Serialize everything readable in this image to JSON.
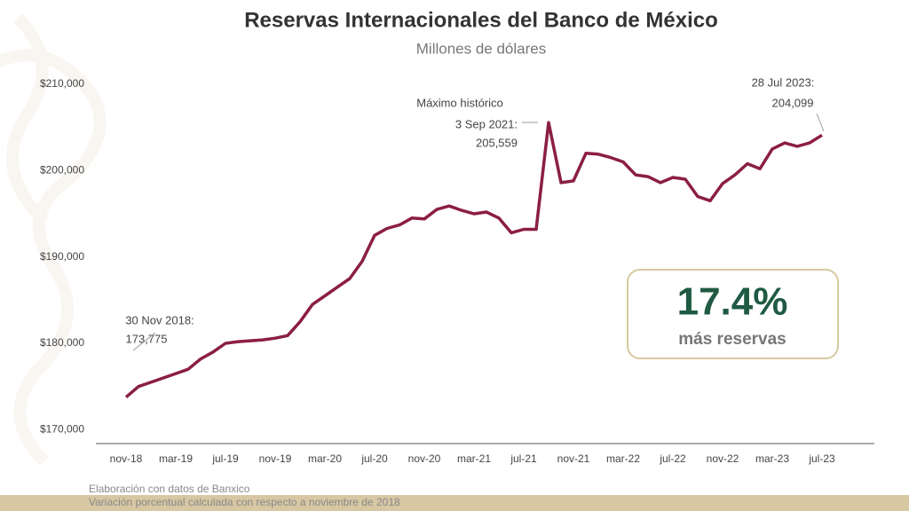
{
  "chart_data": {
    "type": "line",
    "title": "Reservas Internacionales del Banco de México",
    "subtitle": "Millones de dólares",
    "categories": [
      "nov-18",
      null,
      null,
      null,
      "mar-19",
      null,
      null,
      null,
      "jul-19",
      null,
      null,
      null,
      "nov-19",
      null,
      null,
      null,
      "mar-20",
      null,
      null,
      null,
      "jul-20",
      null,
      null,
      null,
      "nov-20",
      null,
      null,
      null,
      "mar-21",
      null,
      null,
      null,
      "jul-21",
      null,
      null,
      null,
      "nov-21",
      null,
      null,
      null,
      "mar-22",
      null,
      null,
      null,
      "jul-22",
      null,
      null,
      null,
      "nov-22",
      null,
      null,
      null,
      "mar-23",
      null,
      null,
      null,
      "jul-23"
    ],
    "values": [
      173775,
      175000,
      175500,
      176000,
      176500,
      177000,
      178200,
      179000,
      180000,
      180200,
      180300,
      180400,
      180600,
      180900,
      182500,
      184500,
      185500,
      186500,
      187500,
      189500,
      192500,
      193300,
      193700,
      194500,
      194400,
      195500,
      195900,
      195400,
      195000,
      195200,
      194500,
      192800,
      193200,
      193200,
      205559,
      198600,
      198800,
      202000,
      201900,
      201500,
      201000,
      199500,
      199300,
      198600,
      199200,
      199000,
      197000,
      196500,
      198500,
      199500,
      200800,
      200200,
      202500,
      203200,
      202800,
      203200,
      204099
    ],
    "color": "#8b1e45",
    "ylim": [
      168400,
      210500
    ],
    "yticks": [
      {
        "value": 170000,
        "label": "$170,000"
      },
      {
        "value": 180000,
        "label": "$180,000"
      },
      {
        "value": 190000,
        "label": "$190,000"
      },
      {
        "value": 200000,
        "label": "$200,000"
      },
      {
        "value": 210000,
        "label": "$210,000"
      }
    ],
    "annotations": [
      "30 Nov 2018:",
      "173,775",
      "Máximo histórico",
      "3 Sep 2021:",
      "205,559",
      "28 Jul 2023:",
      "204,099"
    ],
    "highlight": {
      "value": "17.4%",
      "text": "más reservas"
    },
    "notes": [
      "Elaboración con datos de Banxico",
      "Variación porcentual calculada con respecto a noviembre de 2018"
    ]
  }
}
